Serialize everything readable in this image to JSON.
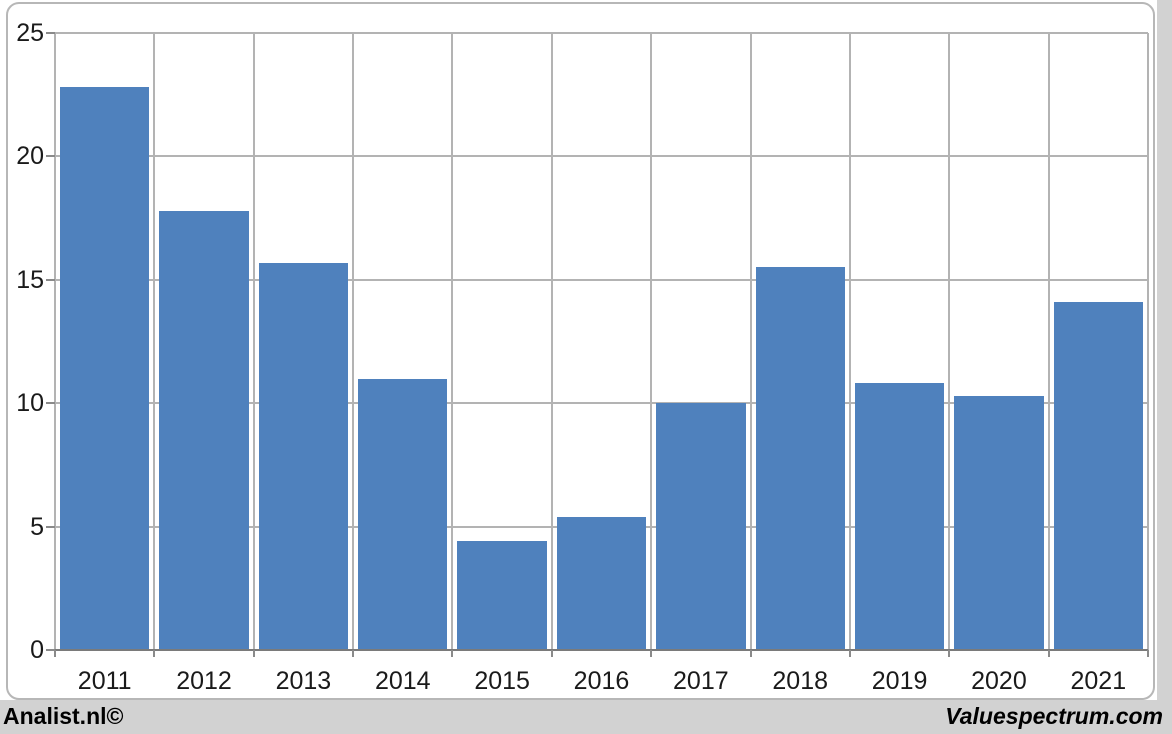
{
  "chart_data": {
    "type": "bar",
    "title": "",
    "xlabel": "",
    "ylabel": "",
    "categories": [
      "2011",
      "2012",
      "2013",
      "2014",
      "2015",
      "2016",
      "2017",
      "2018",
      "2019",
      "2020",
      "2021"
    ],
    "values": [
      22.8,
      17.8,
      15.7,
      11.0,
      4.4,
      5.4,
      10.0,
      15.5,
      10.8,
      10.3,
      14.1
    ],
    "ylim": [
      0,
      25
    ],
    "yticks": [
      0,
      5,
      10,
      15,
      20,
      25
    ],
    "grid": true,
    "legend": "none",
    "bar_color": "#4f81bd",
    "gridline_color": "#b3b3b3",
    "axis_color": "#7a7a7a",
    "plot_background": "#ffffff",
    "outer_background": "#d2d2d2"
  },
  "footer": {
    "left": "Analist.nl©",
    "right": "Valuespectrum.com"
  }
}
